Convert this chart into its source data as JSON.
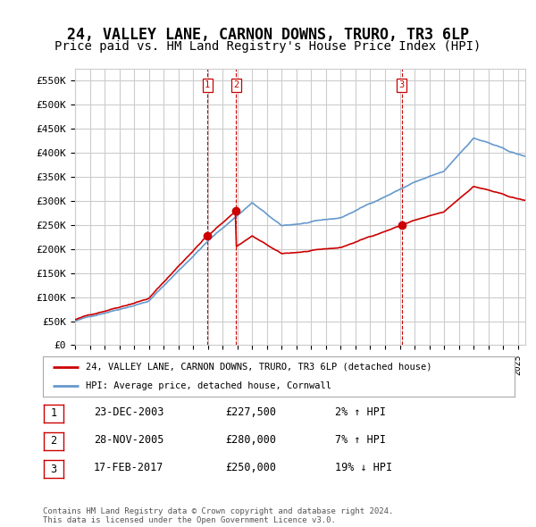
{
  "title": "24, VALLEY LANE, CARNON DOWNS, TRURO, TR3 6LP",
  "subtitle": "Price paid vs. HM Land Registry's House Price Index (HPI)",
  "title_fontsize": 12,
  "subtitle_fontsize": 10,
  "ylabel_ticks": [
    "£0",
    "£50K",
    "£100K",
    "£150K",
    "£200K",
    "£250K",
    "£300K",
    "£350K",
    "£400K",
    "£450K",
    "£500K",
    "£550K"
  ],
  "ytick_values": [
    0,
    50000,
    100000,
    150000,
    200000,
    250000,
    300000,
    350000,
    400000,
    450000,
    500000,
    550000
  ],
  "ylim": [
    0,
    575000
  ],
  "xlim_start": 1995.0,
  "xlim_end": 2025.5,
  "sale_decimal": [
    2003.975,
    2005.91,
    2017.13
  ],
  "sale_prices": [
    227500,
    280000,
    250000
  ],
  "sale_labels": [
    "1",
    "2",
    "3"
  ],
  "legend_entries": [
    "24, VALLEY LANE, CARNON DOWNS, TRURO, TR3 6LP (detached house)",
    "HPI: Average price, detached house, Cornwall"
  ],
  "table_rows": [
    {
      "label": "1",
      "date": "23-DEC-2003",
      "price": "£227,500",
      "change": "2% ↑ HPI"
    },
    {
      "label": "2",
      "date": "28-NOV-2005",
      "price": "£280,000",
      "change": "7% ↑ HPI"
    },
    {
      "label": "3",
      "date": "17-FEB-2017",
      "price": "£250,000",
      "change": "19% ↓ HPI"
    }
  ],
  "footer": "Contains HM Land Registry data © Crown copyright and database right 2024.\nThis data is licensed under the Open Government Licence v3.0.",
  "line_color_red": "#cc0000",
  "line_color_blue": "#6699cc",
  "vline_color": "#cc0000",
  "bg_color": "#ffffff",
  "grid_color": "#cccccc"
}
